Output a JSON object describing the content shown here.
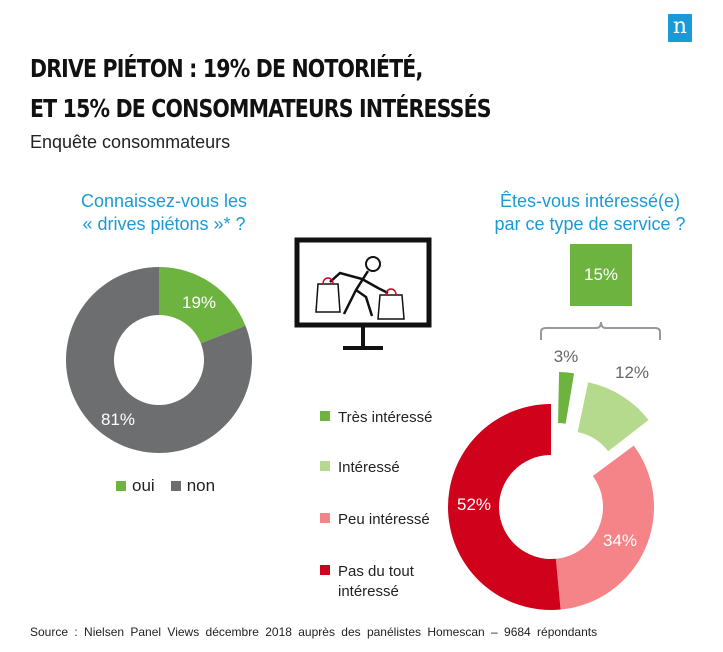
{
  "title_line1": "DRIVE PIÉTON : 19% DE NOTORIÉTÉ,",
  "title_line2": "ET 15% DE CONSOMMATEURS  INTÉRESSÉS",
  "subtitle": "Enquête consommateurs",
  "logo_letter": "n",
  "icon": "shopper-with-bags-icon",
  "source": "Source : Nielsen  Panel Views  décembre  2018  auprès  des panélistes  Homescan  – 9684 répondants",
  "chart_data": [
    {
      "type": "pie",
      "donut": true,
      "title": "Connaissez-vous les\n« drives piétons »* ?",
      "title_lines": [
        "Connaissez-vous les",
        "« drives piétons »* ?"
      ],
      "categories": [
        "oui",
        "non"
      ],
      "values": [
        19,
        81
      ],
      "labels": [
        "19%",
        "81%"
      ],
      "colors": [
        "#6db33f",
        "#6d6e70"
      ],
      "legend": "bottom"
    },
    {
      "type": "pie",
      "donut": true,
      "exploded": [
        "Très intéressé",
        "Intéressé"
      ],
      "title": "Êtes-vous intéressé(e)\npar ce type de service ?",
      "title_lines": [
        "Êtes-vous intéressé(e)",
        "par ce type de service ?"
      ],
      "categories": [
        "Très intéressé",
        "Intéressé",
        "Peu intéressé",
        "Pas du tout intéressé"
      ],
      "legend_lines": [
        [
          "Très intéressé"
        ],
        [
          "Intéressé"
        ],
        [
          "Peu intéressé"
        ],
        [
          "Pas du tout",
          "intéressé"
        ]
      ],
      "values": [
        3,
        12,
        34,
        52
      ],
      "labels": [
        "3%",
        "12%",
        "34%",
        "52%"
      ],
      "colors": [
        "#6db33f",
        "#b5da8e",
        "#f48488",
        "#d0021b"
      ],
      "legend": "left",
      "annotation": {
        "label": "15%",
        "value": 15,
        "color": "#6db33f"
      }
    }
  ]
}
